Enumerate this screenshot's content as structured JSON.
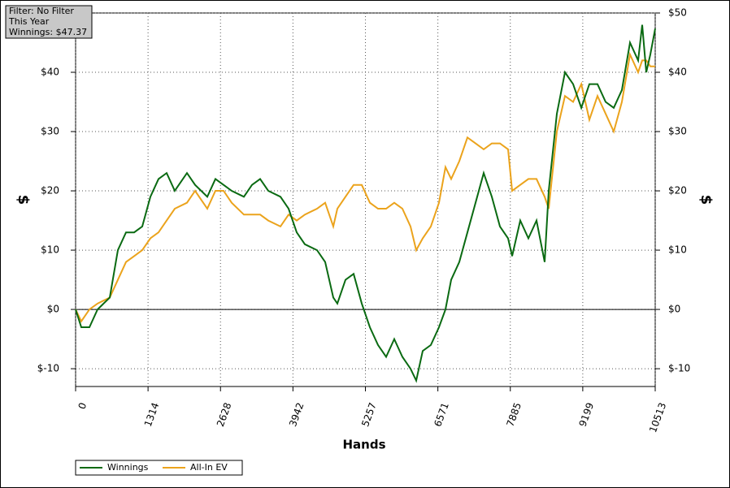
{
  "chart_data": {
    "type": "line",
    "annotations": [
      "Filter: No Filter",
      "This Year",
      "Winnings: $47.37"
    ],
    "xlabel": "Hands",
    "ylabel": "$",
    "xlim": [
      0,
      10513
    ],
    "xticks": [
      0,
      1314,
      2628,
      3942,
      5257,
      6571,
      7885,
      9199,
      10513
    ],
    "ylim": [
      -13,
      50
    ],
    "yticks": [
      {
        "value": -10,
        "label": "$-10"
      },
      {
        "value": 0,
        "label": "$0"
      },
      {
        "value": 10,
        "label": "$10"
      },
      {
        "value": 20,
        "label": "$20"
      },
      {
        "value": 30,
        "label": "$30"
      },
      {
        "value": 40,
        "label": "$40"
      },
      {
        "value": 50,
        "label": "$50"
      }
    ],
    "grid": true,
    "legend": "bottom-left",
    "x": [
      0,
      103,
      251,
      398,
      619,
      767,
      914,
      1062,
      1209,
      1357,
      1504,
      1651,
      1799,
      2020,
      2168,
      2389,
      2536,
      2684,
      2831,
      3052,
      3200,
      3347,
      3495,
      3716,
      3863,
      4011,
      4158,
      4379,
      4527,
      4674,
      4748,
      4895,
      5043,
      5190,
      5338,
      5485,
      5633,
      5780,
      5927,
      6075,
      6178,
      6296,
      6444,
      6591,
      6709,
      6812,
      6960,
      7107,
      7255,
      7402,
      7549,
      7697,
      7844,
      7918,
      8066,
      8213,
      8360,
      8508,
      8582,
      8729,
      8877,
      9024,
      9172,
      9319,
      9466,
      9614,
      9761,
      9909,
      10056,
      10204,
      10277,
      10351,
      10425,
      10513
    ],
    "series": [
      {
        "name": "Winnings",
        "color": "#0a6a12",
        "values": [
          0,
          -3,
          -3,
          0,
          2,
          10,
          13,
          13,
          14,
          19,
          22,
          23,
          20,
          23,
          21,
          19,
          22,
          21,
          20,
          19,
          21,
          22,
          20,
          19,
          17,
          13,
          11,
          10,
          8,
          2,
          1,
          5,
          6,
          1,
          -3,
          -6,
          -8,
          -5,
          -8,
          -10,
          -12,
          -7,
          -6,
          -3,
          0,
          5,
          8,
          13,
          18,
          23,
          19,
          14,
          12,
          9,
          15,
          12,
          15,
          8,
          20,
          33,
          40,
          38,
          34,
          38,
          38,
          35,
          34,
          37,
          45,
          42,
          48,
          40,
          43,
          47.37
        ]
      },
      {
        "name": "All-In EV",
        "color": "#eba31c",
        "values": [
          0,
          -2,
          0,
          1,
          2,
          5,
          8,
          9,
          10,
          12,
          13,
          15,
          17,
          18,
          20,
          17,
          20,
          20,
          18,
          16,
          16,
          16,
          15,
          14,
          16,
          15,
          16,
          17,
          18,
          14,
          17,
          19,
          21,
          21,
          18,
          17,
          17,
          18,
          17,
          14,
          10,
          12,
          14,
          18,
          24,
          22,
          25,
          29,
          28,
          27,
          28,
          28,
          27,
          20,
          21,
          22,
          22,
          19,
          17,
          30,
          36,
          35,
          38,
          32,
          36,
          33,
          30,
          35,
          43,
          40,
          42,
          42,
          41,
          41
        ]
      }
    ]
  }
}
